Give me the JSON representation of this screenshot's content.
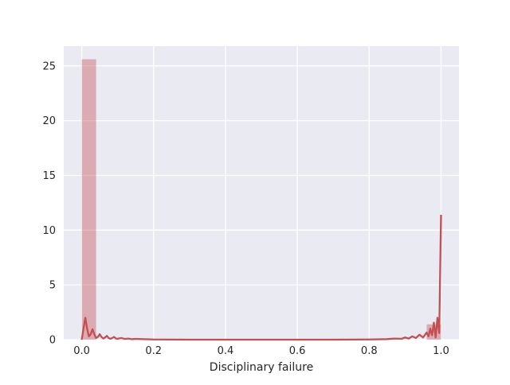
{
  "chart_data": {
    "type": "histogram",
    "title": "",
    "xlabel": "Disciplinary failure",
    "ylabel": "",
    "xlim": [
      -0.05,
      1.05
    ],
    "ylim": [
      0,
      26.8
    ],
    "grid": true,
    "x_ticks": [
      {
        "value": 0.0,
        "label": "0.0"
      },
      {
        "value": 0.2,
        "label": "0.2"
      },
      {
        "value": 0.4,
        "label": "0.4"
      },
      {
        "value": 0.6,
        "label": "0.6"
      },
      {
        "value": 0.8,
        "label": "0.8"
      },
      {
        "value": 1.0,
        "label": "1.0"
      }
    ],
    "y_ticks": [
      {
        "value": 0,
        "label": "0"
      },
      {
        "value": 5,
        "label": "5"
      },
      {
        "value": 10,
        "label": "10"
      },
      {
        "value": 15,
        "label": "15"
      },
      {
        "value": 20,
        "label": "20"
      },
      {
        "value": 25,
        "label": "25"
      }
    ],
    "bins": [
      {
        "x0": 0.0,
        "x1": 0.04,
        "density": 25.6
      },
      {
        "x0": 0.96,
        "x1": 1.0,
        "density": 1.4
      }
    ],
    "kde": {
      "x": [
        0.0,
        0.005,
        0.01,
        0.015,
        0.02,
        0.025,
        0.03,
        0.035,
        0.04,
        0.045,
        0.05,
        0.055,
        0.06,
        0.065,
        0.07,
        0.075,
        0.08,
        0.085,
        0.09,
        0.095,
        0.1,
        0.11,
        0.12,
        0.13,
        0.14,
        0.15,
        0.2,
        0.3,
        0.4,
        0.5,
        0.6,
        0.7,
        0.8,
        0.85,
        0.87,
        0.89,
        0.9,
        0.91,
        0.92,
        0.93,
        0.94,
        0.95,
        0.96,
        0.965,
        0.97,
        0.975,
        0.98,
        0.985,
        0.99,
        0.995,
        1.0
      ],
      "y": [
        0.0,
        1.0,
        2.0,
        1.0,
        0.3,
        0.5,
        0.95,
        0.5,
        0.15,
        0.25,
        0.5,
        0.25,
        0.1,
        0.2,
        0.35,
        0.15,
        0.08,
        0.15,
        0.25,
        0.1,
        0.08,
        0.15,
        0.06,
        0.1,
        0.04,
        0.07,
        0.02,
        0.0,
        0.0,
        0.0,
        0.0,
        0.0,
        0.02,
        0.05,
        0.1,
        0.08,
        0.2,
        0.1,
        0.3,
        0.15,
        0.45,
        0.2,
        0.65,
        0.3,
        1.0,
        0.4,
        1.55,
        0.2,
        2.0,
        0.6,
        11.4
      ]
    },
    "colors": {
      "background": "#eaeaf2",
      "grid": "#ffffff",
      "bar": "#c44e52",
      "line": "#c44e52"
    }
  }
}
